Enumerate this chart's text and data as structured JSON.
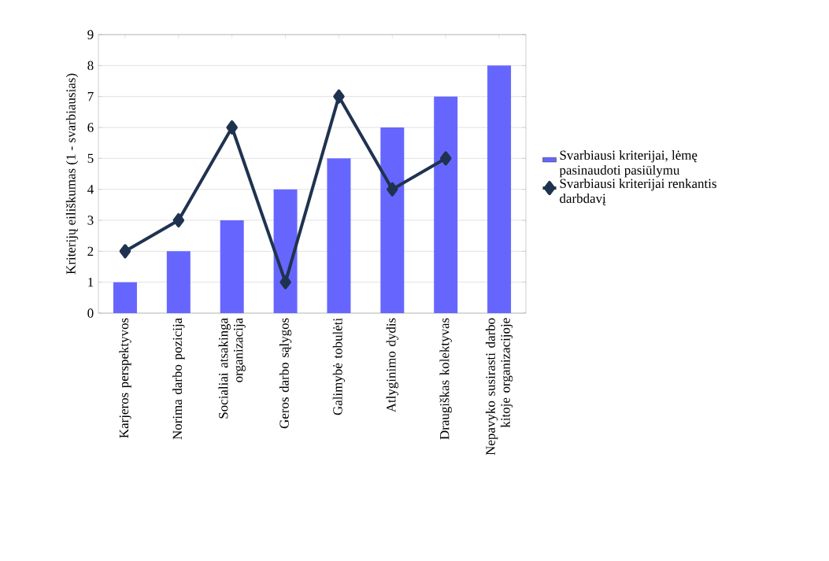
{
  "chart_data": {
    "type": "bar",
    "ylabel": "Kriterijų eiliškumas (1 - svarbiausias)",
    "categories": [
      "Karjeros perspektyvos",
      "Norima darbo pozicija",
      "Socialiai atsakinga organizacija",
      "Geros darbo sąlygos",
      "Galimybė tobulėti",
      "Atlyginimo dydis",
      "Draugiškas kolektyvas",
      "Nepavyko susirasti darbo kitoje organizacijoje"
    ],
    "series": [
      {
        "name": "Svarbiausi kriterijai, lėmę pasinaudoti pasiūlymu",
        "color": "#6666ff",
        "values": [
          1,
          2,
          3,
          4,
          5,
          6,
          7,
          8
        ]
      },
      {
        "name": "Svarbiausi kriterijai renkantis darbdavį",
        "type": "line",
        "color": "#1f3350",
        "marker": "diamond",
        "values": [
          2,
          3,
          6,
          1,
          7,
          4,
          5,
          null
        ]
      }
    ],
    "ylim": [
      0,
      9
    ],
    "yticks": [
      0,
      1,
      2,
      3,
      4,
      5,
      6,
      7,
      8,
      9
    ],
    "grid": "y",
    "legend": "right"
  }
}
